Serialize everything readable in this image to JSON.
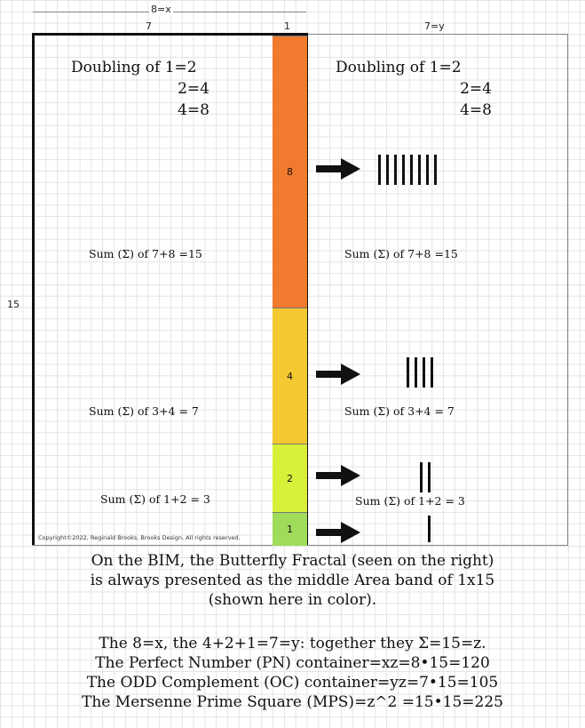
{
  "dimensions": {
    "top": "8=x",
    "left_width": "7",
    "band_width": "1",
    "right_width": "7=y",
    "height": "15"
  },
  "left_panel": {
    "heading": [
      "Doubling of 1=2",
      "2=4",
      "4=8"
    ],
    "sums": [
      "Sum (Σ) of 7+8 =15",
      "Sum (Σ) of 3+4 = 7",
      "Sum (Σ) of 1+2 = 3"
    ],
    "copyright": "Copyright©2022, Reginald Brooks, Brooks Design. All rights reserved."
  },
  "bands": [
    {
      "label": "8",
      "value": 8,
      "color": "#f07a2e"
    },
    {
      "label": "4",
      "value": 4,
      "color": "#f4c830"
    },
    {
      "label": "2",
      "value": 2,
      "color": "#d8f03a"
    },
    {
      "label": "1",
      "value": 1,
      "color": "#9edc5a"
    }
  ],
  "right_panel": {
    "heading": [
      "Doubling of 1=2",
      "2=4",
      "4=8"
    ],
    "sums": [
      "Sum (Σ) of 7+8 =15",
      "Sum (Σ) of 3+4 = 7",
      "Sum (Σ) of 1+2 = 3"
    ],
    "tallies": [
      8,
      4,
      2,
      1
    ]
  },
  "caption": {
    "lines": [
      "On the BIM, the Butterfly Fractal (seen on the right)",
      "is always presented as the middle Area band of 1x15",
      "(shown here in color).",
      "",
      "The 8=x, the 4+2+1=7=y: together they Σ=15=z.",
      "The Perfect Number (PN) container=xz=8•15=120",
      "The ODD Complement (OC) container=yz=7•15=105",
      "The Mersenne Prime Square (MPS)=z^2 =15•15=225"
    ]
  }
}
